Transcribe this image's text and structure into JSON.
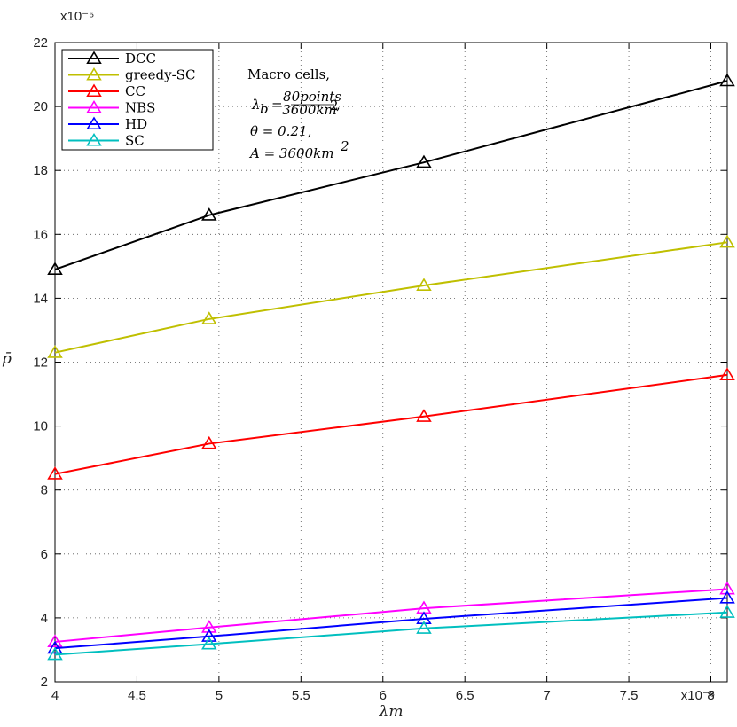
{
  "chart_data": {
    "type": "line",
    "xlabel": "λm",
    "ylabel": "p̄",
    "x_exponent_label": "x10⁻⁸",
    "y_exponent_label": "x10⁻⁵",
    "xlim": [
      4,
      8.1
    ],
    "ylim": [
      2,
      22
    ],
    "x_ticks": [
      4,
      4.5,
      5,
      5.5,
      6,
      6.5,
      7,
      7.5,
      8
    ],
    "x_tick_labels": [
      "4",
      "4.5",
      "5",
      "5.5",
      "6",
      "6.5",
      "7",
      "7.5",
      "8"
    ],
    "y_ticks": [
      2,
      4,
      6,
      8,
      10,
      12,
      14,
      16,
      18,
      20,
      22
    ],
    "y_tick_labels": [
      "2",
      "4",
      "6",
      "8",
      "10",
      "12",
      "14",
      "16",
      "18",
      "20",
      "22"
    ],
    "grid": true,
    "legend_position": "top-left",
    "x": [
      4,
      4.94,
      6.25,
      8.1
    ],
    "series": [
      {
        "name": "DCC",
        "color": "#000000",
        "marker": "triangle",
        "values": [
          14.9,
          16.6,
          18.25,
          20.8
        ]
      },
      {
        "name": "greedy-SC",
        "color": "#bfbf00",
        "marker": "triangle",
        "values": [
          12.3,
          13.35,
          14.4,
          15.75
        ]
      },
      {
        "name": "CC",
        "color": "#ff0000",
        "marker": "triangle",
        "values": [
          8.5,
          9.45,
          10.3,
          11.6
        ]
      },
      {
        "name": "NBS",
        "color": "#ff00ff",
        "marker": "triangle",
        "values": [
          3.25,
          3.7,
          4.3,
          4.9
        ]
      },
      {
        "name": "HD",
        "color": "#0000ff",
        "marker": "triangle",
        "values": [
          3.05,
          3.42,
          3.97,
          4.62
        ]
      },
      {
        "name": "SC",
        "color": "#00bfbf",
        "marker": "triangle",
        "values": [
          2.85,
          3.18,
          3.67,
          4.17
        ]
      }
    ],
    "annotation": {
      "line1": "Macro cells,",
      "lambda_symbol": "λ",
      "lambda_sub": "b",
      "frac_num": "80points",
      "frac_den": "3600km",
      "frac_den_sup": "2",
      "frac_tail": ",",
      "line3": "θ = 0.21,",
      "line4_main": "A = 3600km",
      "line4_sup": "2"
    }
  }
}
